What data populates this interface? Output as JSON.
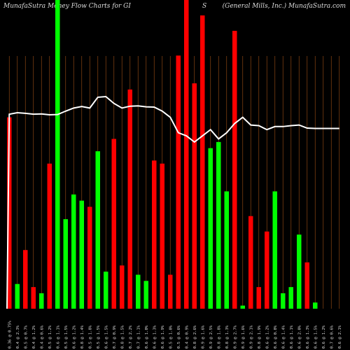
{
  "header": {
    "left": "MunafaSutra  Money Flow  Charts for GI",
    "mid": "S",
    "right": "(General Mills,  Inc.) MunafaSutra.com"
  },
  "colors": {
    "background": "#000000",
    "up": "#00ff00",
    "down": "#ff0000",
    "line": "#ffffff",
    "grid": "#8b4513"
  },
  "chart_data": {
    "type": "bar",
    "ylim": [
      0,
      100
    ],
    "categories": [
      "0.36 @ 0.75%",
      "0.4 @ 2.3%",
      "0.5 @ 0.7%",
      "0.4 @ 1.2%",
      "0.4 @ 0.6%",
      "0.5 @ 1.2%",
      "0.6 @ 1.1%",
      "0.5 @ 1.5%",
      "0.6 @ 1.2%",
      "0.8 @ 1.4%",
      "0.5 @ 1.8%",
      "0.5 @ 1.5%",
      "0.6 @ 1.5%",
      "0.7 @ 0.9%",
      "0.8 @ 1.5%",
      "0.7 @ 2.2%",
      "0.7 @ 1.1%",
      "0.6 @ 1.0%",
      "0.6 @ 1.3%",
      "0.6 @ 1.9%",
      "0.5 @ 1.0%",
      "0.5 @ 0.6%",
      "0.4 @ 0.9%",
      "0.8 @ 2.6%",
      "0.9 @ 1.6%",
      "0.9 @ 2.5%",
      "0.8 @ 1.8%",
      "0.8 @ 1.3%",
      "0.9 @ 2.7%",
      "0.9 @ 1.6%",
      "0.9 @ 2.1%",
      "0.8 @ 1.9%",
      "0.6 @ 1.2%",
      "0.6 @ 0.8%",
      "0.6 @ 1.4%",
      "0.6 @ 1.1%",
      "0.6 @ 2.0%",
      "0.6 @ 1.3%",
      "0.6 @ 1.5%",
      "0.6 @ 1.2%",
      "0.7 @ 0.6%",
      "0.6 @ 2.1%"
    ],
    "values": [
      62,
      8,
      19,
      7,
      5,
      47,
      100,
      29,
      37,
      35,
      33,
      51,
      12,
      55,
      14,
      71,
      11,
      9,
      48,
      47,
      11,
      82,
      100,
      73,
      95,
      52,
      54,
      38,
      90,
      1,
      30,
      7,
      25,
      38,
      5,
      7,
      24,
      15,
      2,
      0,
      0,
      0
    ],
    "directions": [
      "down",
      "up",
      "down",
      "down",
      "up",
      "down",
      "up",
      "up",
      "up",
      "up",
      "down",
      "up",
      "up",
      "down",
      "down",
      "down",
      "up",
      "up",
      "down",
      "down",
      "down",
      "down",
      "down",
      "down",
      "down",
      "up",
      "up",
      "up",
      "down",
      "up",
      "down",
      "down",
      "down",
      "up",
      "up",
      "up",
      "up",
      "down",
      "up",
      "up",
      "up",
      "up"
    ],
    "line": [
      63,
      63.5,
      63.3,
      63,
      63.1,
      62.8,
      62.9,
      64,
      65,
      65.5,
      65,
      68.5,
      68.7,
      66.5,
      65,
      65.6,
      65.7,
      65.4,
      65.3,
      64,
      62,
      57,
      56,
      54,
      56,
      58,
      55,
      57,
      60,
      62,
      59.5,
      59.3,
      58,
      59,
      59,
      59.3,
      59.5,
      58.5,
      58.4,
      58.4,
      58.4,
      58.4
    ]
  }
}
